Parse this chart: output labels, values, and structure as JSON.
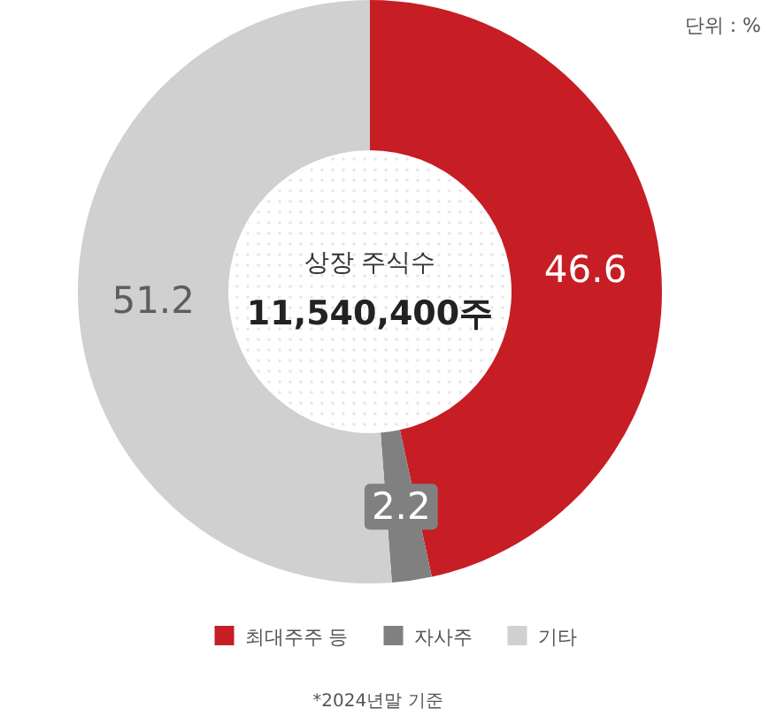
{
  "chart_data": {
    "type": "donut",
    "title": "상장 주식수",
    "subtitle": "11,540,400주",
    "categories": [
      "최대주주 등",
      "자사주",
      "기타"
    ],
    "values": [
      46.6,
      2.2,
      51.2
    ],
    "colors": [
      "#c71d25",
      "#808080",
      "#d0d0d0"
    ],
    "data_labels": true,
    "legend": "bottom",
    "annotations": [
      "단위 : %",
      "*2024년말 기준"
    ]
  }
}
